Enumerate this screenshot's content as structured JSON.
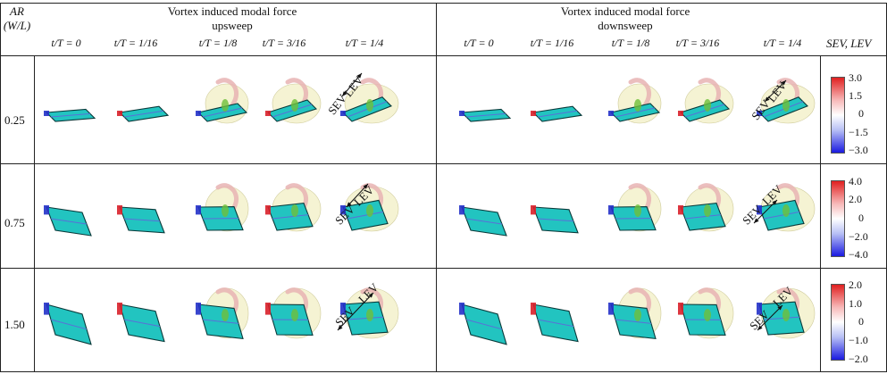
{
  "header": {
    "ar_label": "AR",
    "ar_sub": "(W/L)",
    "left_title_line1": "Vortex induced modal force",
    "left_title_line2": "upsweep",
    "right_title_line1": "Vortex induced modal force",
    "right_title_line2": "downsweep",
    "colorbar_header": "SEV, LEV"
  },
  "time_labels": [
    "t/T = 0",
    "t/T = 1/16",
    "t/T = 1/8",
    "t/T = 3/16",
    "t/T = 1/4"
  ],
  "rows": [
    {
      "ar": "0.25",
      "ticks": [
        "3.0",
        "1.5",
        "0",
        "−1.5",
        "−3.0"
      ]
    },
    {
      "ar": "0.75",
      "ticks": [
        "4.0",
        "2.0",
        "0",
        "−2.0",
        "−4.0"
      ]
    },
    {
      "ar": "1.50",
      "ticks": [
        "2.0",
        "1.0",
        "0",
        "−1.0",
        "−2.0"
      ]
    }
  ],
  "arrow_labels": {
    "sev": "SEV",
    "lev": "LEV"
  },
  "colors": {
    "plate": "#22c4c0",
    "plate_edge": "#0a3a3a",
    "vortex_pale": "#f1efc4",
    "vortex_red": "#d9202a",
    "vortex_blue": "#2431c9",
    "vortex_pink": "#e7b3b3",
    "vortex_green": "#6fbf3a"
  }
}
